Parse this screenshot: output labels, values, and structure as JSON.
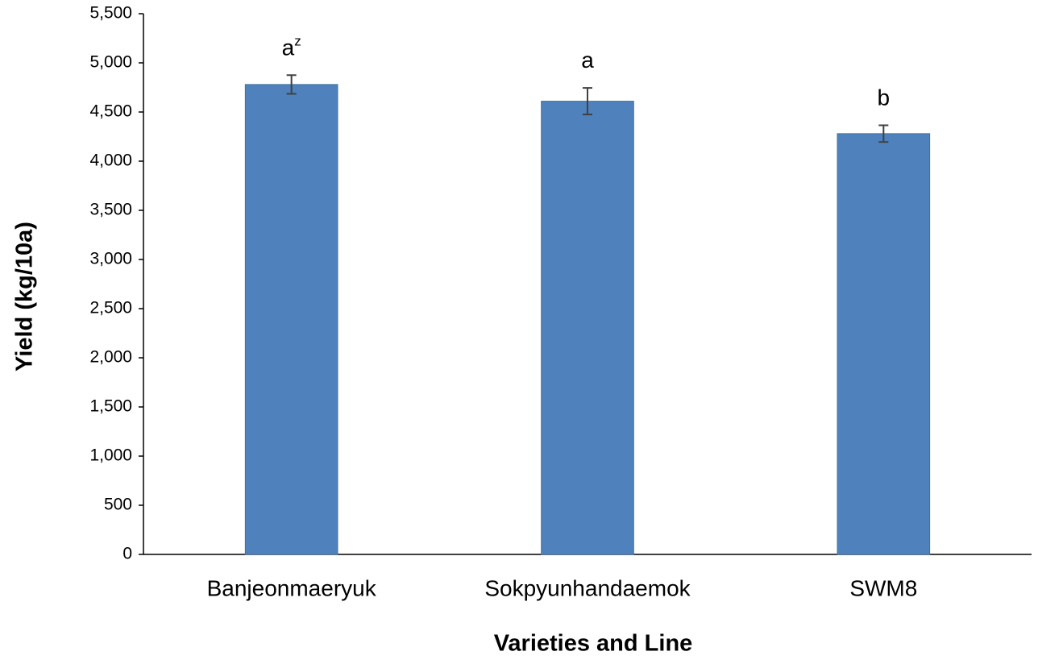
{
  "chart_data": {
    "type": "bar",
    "x_label": "Varieties and Line",
    "y_label": "Yield (kg/10a)",
    "categories": [
      "Banjeonmaeryuk",
      "Sokpyunhandaemok",
      "SWM8"
    ],
    "values": [
      4780,
      4610,
      4280
    ],
    "errors": [
      95,
      135,
      85
    ],
    "letters": [
      {
        "text": "a",
        "sup": "z"
      },
      {
        "text": "a"
      },
      {
        "text": "b"
      }
    ],
    "color": "#4f81bd",
    "ylim": [
      0,
      5500
    ],
    "yticks": [
      0,
      500,
      {
        "value": 1000,
        "label": "1,000"
      },
      {
        "value": 1500,
        "label": "1,500"
      },
      {
        "value": 2000,
        "label": "2,000"
      },
      {
        "value": 2500,
        "label": "2,500"
      },
      {
        "value": 3000,
        "label": "3,000"
      },
      {
        "value": 3500,
        "label": "3,500"
      },
      {
        "value": 4000,
        "label": "4,000"
      },
      {
        "value": 4500,
        "label": "4,500"
      },
      {
        "value": 5000,
        "label": "5,000"
      },
      {
        "value": 5500,
        "label": "5,500"
      }
    ],
    "grid": false
  }
}
